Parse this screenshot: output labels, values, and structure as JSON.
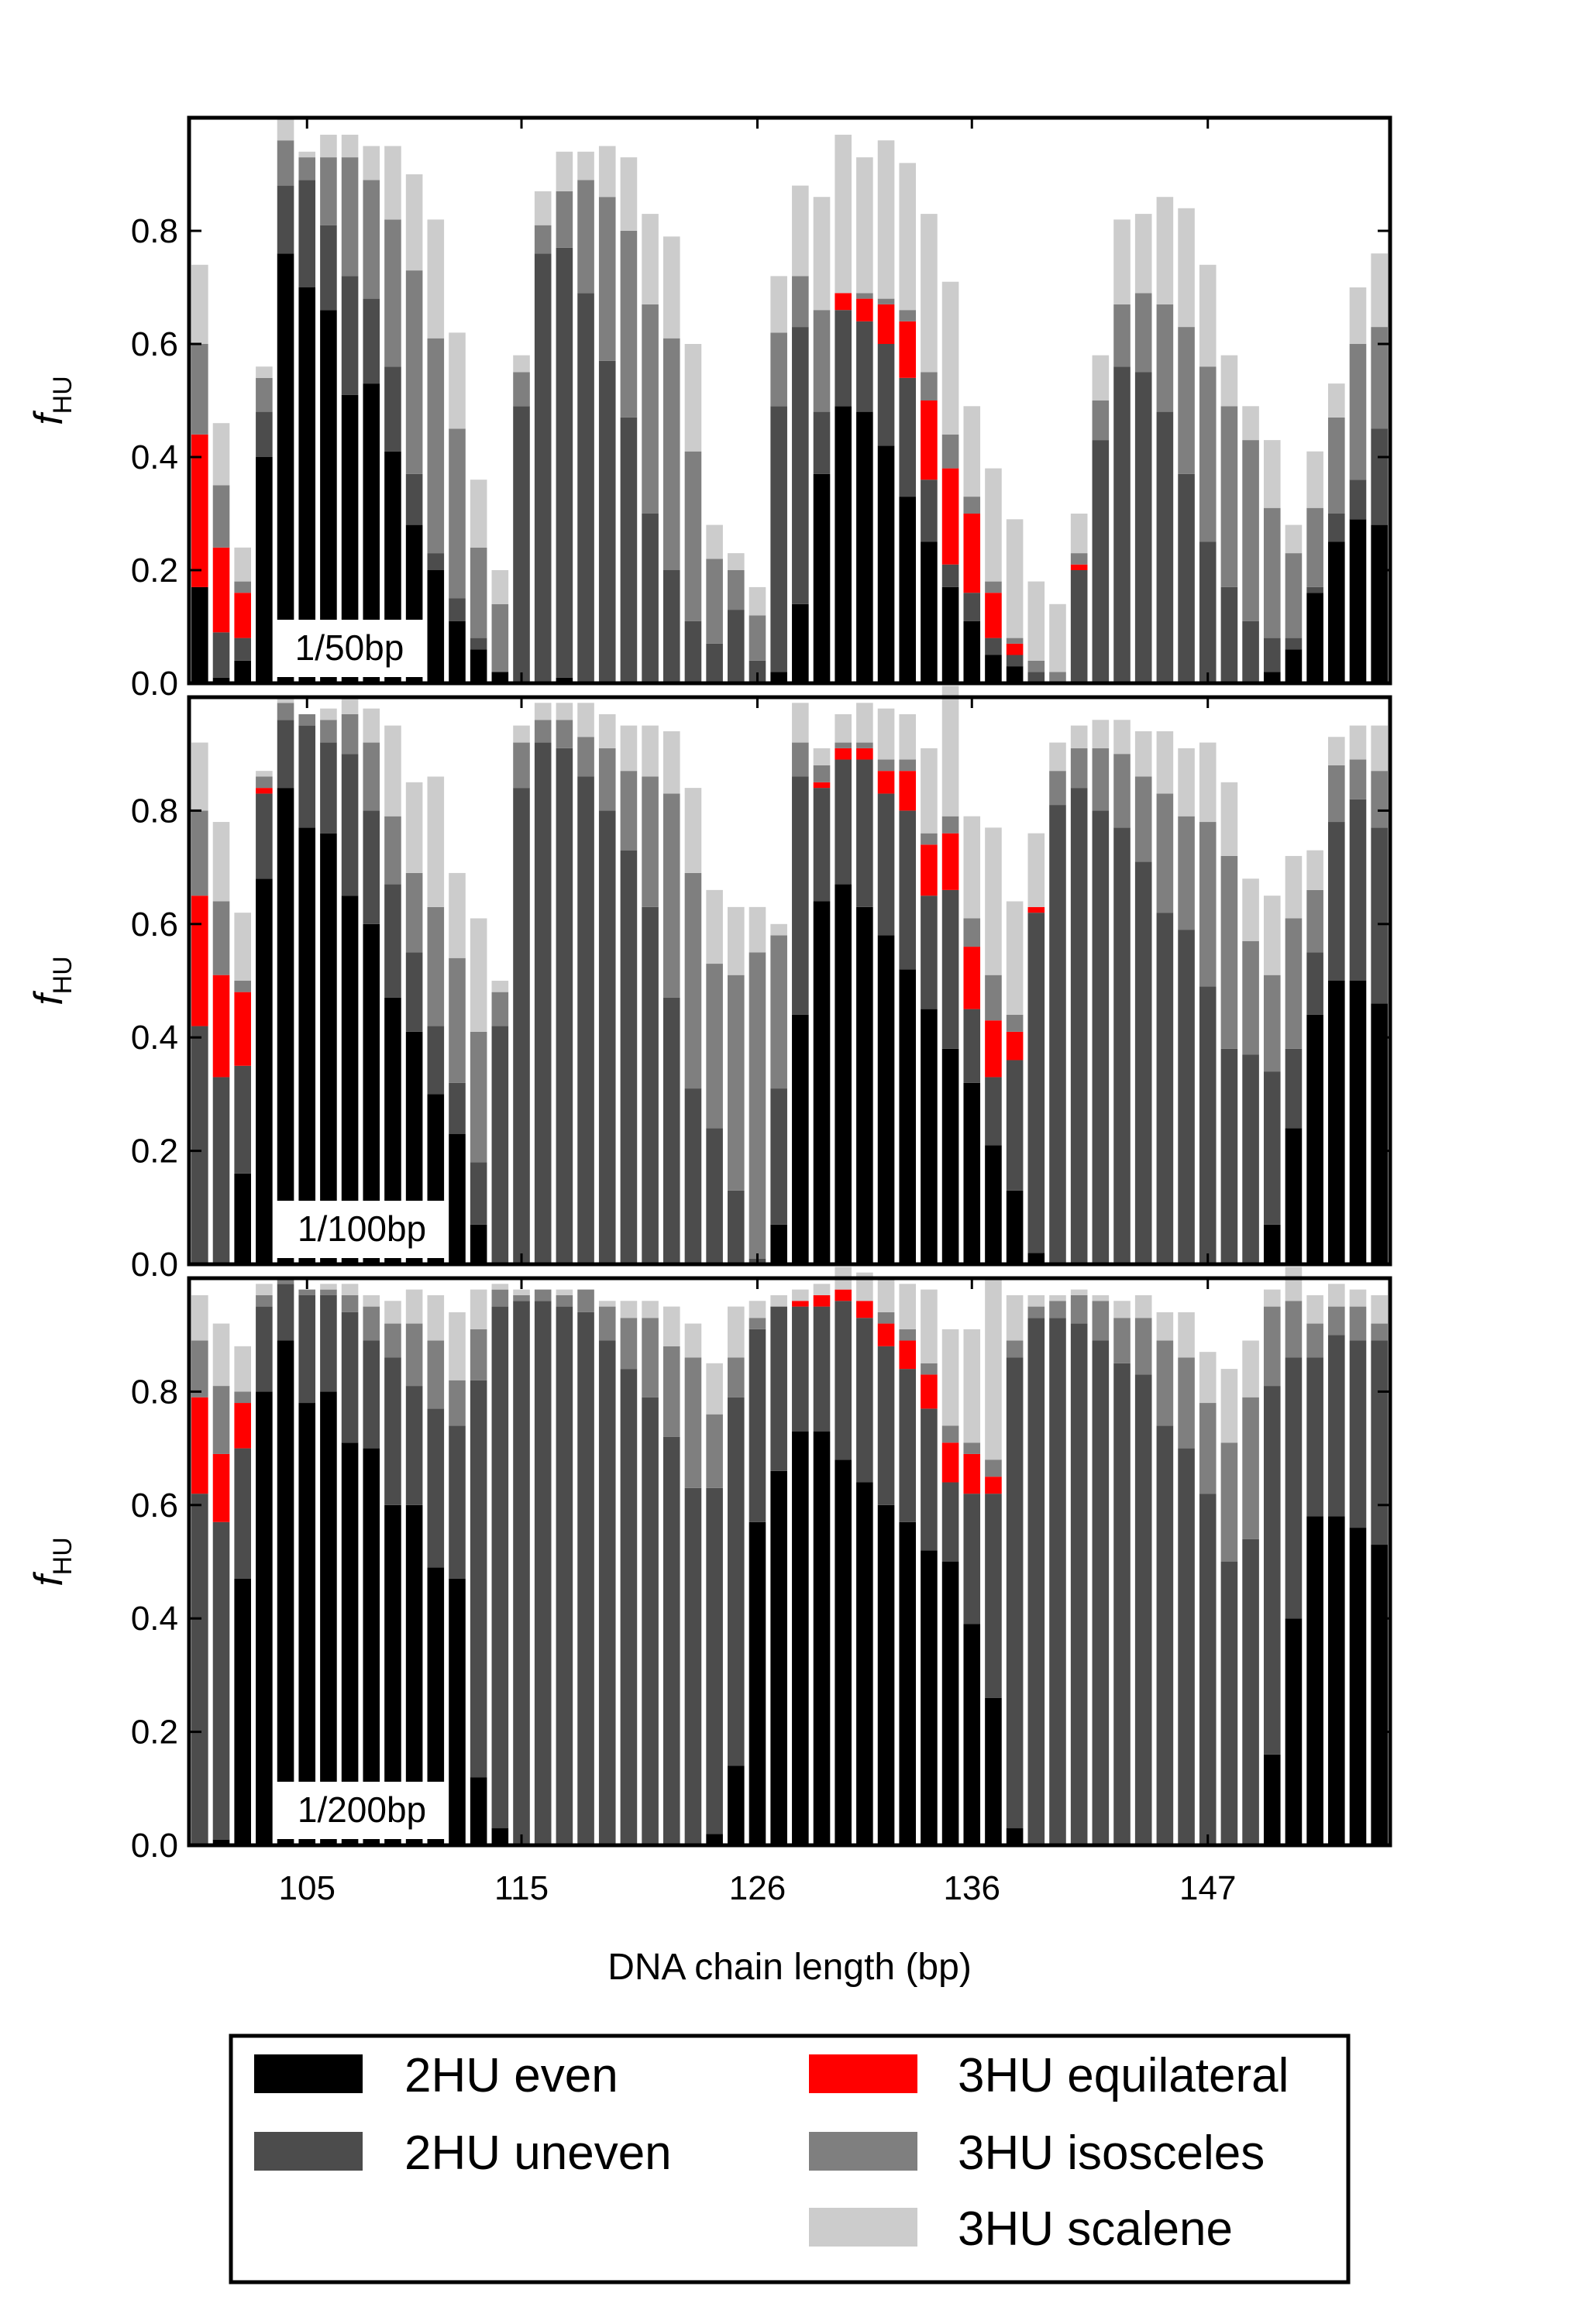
{
  "chart_data": [
    {
      "type": "bar",
      "stacked": true,
      "annotation": "1/50bp",
      "ylabel": "f_HU",
      "ylim": [
        0,
        1
      ],
      "yticks": [
        0.0,
        0.2,
        0.4,
        0.6,
        0.8
      ],
      "series": [
        {
          "name": "2HU even",
          "color": "#000000",
          "values": [
            0.17,
            0.01,
            0.04,
            0.4,
            0.76,
            0.7,
            0.66,
            0.51,
            0.53,
            0.41,
            0.28,
            0.2,
            0.11,
            0.06,
            0.02,
            0.0,
            0.0,
            0.01,
            0.0,
            0.0,
            0.0,
            0.0,
            0.0,
            0.0,
            0.0,
            0.0,
            0.0,
            0.02,
            0.14,
            0.37,
            0.49,
            0.48,
            0.42,
            0.33,
            0.25,
            0.17,
            0.11,
            0.05,
            0.03,
            0.0,
            0.0,
            0.0,
            0.0,
            0.0,
            0.0,
            0.0,
            0.0,
            0.0,
            0.0,
            0.0,
            0.02,
            0.06,
            0.16,
            0.25,
            0.29,
            0.28
          ]
        },
        {
          "name": "2HU uneven",
          "color": "#4c4c4c",
          "values": [
            0.0,
            0.08,
            0.04,
            0.08,
            0.12,
            0.19,
            0.15,
            0.21,
            0.15,
            0.15,
            0.09,
            0.03,
            0.04,
            0.02,
            0.0,
            0.49,
            0.76,
            0.76,
            0.69,
            0.57,
            0.47,
            0.3,
            0.2,
            0.11,
            0.07,
            0.13,
            0.04,
            0.47,
            0.49,
            0.11,
            0.17,
            0.16,
            0.18,
            0.21,
            0.11,
            0.04,
            0.05,
            0.03,
            0.02,
            0.02,
            0.0,
            0.2,
            0.43,
            0.56,
            0.55,
            0.48,
            0.37,
            0.25,
            0.17,
            0.11,
            0.06,
            0.02,
            0.01,
            0.05,
            0.07,
            0.17
          ]
        },
        {
          "name": "3HU equilateral",
          "color": "#ff0000",
          "values": [
            0.27,
            0.15,
            0.08,
            0.0,
            0.0,
            0.0,
            0.0,
            0.0,
            0.0,
            0.0,
            0.0,
            0.0,
            0.0,
            0.0,
            0.0,
            0.0,
            0.0,
            0.0,
            0.0,
            0.0,
            0.0,
            0.0,
            0.0,
            0.0,
            0.0,
            0.0,
            0.0,
            0.0,
            0.0,
            0.0,
            0.03,
            0.04,
            0.07,
            0.1,
            0.14,
            0.17,
            0.14,
            0.08,
            0.02,
            0.0,
            0.0,
            0.01,
            0.0,
            0.0,
            0.0,
            0.0,
            0.0,
            0.0,
            0.0,
            0.0,
            0.0,
            0.0,
            0.0,
            0.0,
            0.0,
            0.0
          ]
        },
        {
          "name": "3HU isosceles",
          "color": "#7f7f7f",
          "values": [
            0.16,
            0.11,
            0.02,
            0.06,
            0.08,
            0.04,
            0.12,
            0.21,
            0.21,
            0.26,
            0.36,
            0.38,
            0.3,
            0.16,
            0.12,
            0.06,
            0.05,
            0.1,
            0.2,
            0.29,
            0.33,
            0.37,
            0.41,
            0.3,
            0.15,
            0.07,
            0.08,
            0.13,
            0.09,
            0.18,
            0.0,
            0.01,
            0.01,
            0.02,
            0.05,
            0.06,
            0.03,
            0.02,
            0.01,
            0.02,
            0.02,
            0.02,
            0.07,
            0.11,
            0.14,
            0.19,
            0.26,
            0.31,
            0.32,
            0.32,
            0.23,
            0.15,
            0.14,
            0.17,
            0.24,
            0.18
          ]
        },
        {
          "name": "3HU scalene",
          "color": "#cccccc",
          "values": [
            0.14,
            0.11,
            0.06,
            0.02,
            0.04,
            0.01,
            0.04,
            0.04,
            0.06,
            0.13,
            0.17,
            0.21,
            0.17,
            0.12,
            0.06,
            0.03,
            0.06,
            0.07,
            0.05,
            0.09,
            0.13,
            0.16,
            0.18,
            0.19,
            0.06,
            0.03,
            0.05,
            0.1,
            0.16,
            0.2,
            0.28,
            0.24,
            0.28,
            0.26,
            0.28,
            0.27,
            0.16,
            0.2,
            0.21,
            0.14,
            0.12,
            0.07,
            0.08,
            0.15,
            0.14,
            0.19,
            0.21,
            0.18,
            0.09,
            0.06,
            0.12,
            0.05,
            0.1,
            0.06,
            0.1,
            0.13
          ]
        }
      ]
    },
    {
      "type": "bar",
      "stacked": true,
      "annotation": "1/100bp",
      "ylabel": "f_HU",
      "ylim": [
        0,
        1
      ],
      "yticks": [
        0.0,
        0.2,
        0.4,
        0.6,
        0.8
      ],
      "series": [
        {
          "name": "2HU even",
          "color": "#000000",
          "values": [
            0.0,
            0.0,
            0.16,
            0.68,
            0.84,
            0.77,
            0.76,
            0.65,
            0.6,
            0.47,
            0.41,
            0.3,
            0.23,
            0.07,
            0.0,
            0.0,
            0.0,
            0.0,
            0.0,
            0.0,
            0.0,
            0.0,
            0.0,
            0.0,
            0.0,
            0.0,
            0.0,
            0.07,
            0.44,
            0.64,
            0.67,
            0.63,
            0.58,
            0.52,
            0.45,
            0.38,
            0.32,
            0.21,
            0.13,
            0.02,
            0.0,
            0.0,
            0.0,
            0.0,
            0.0,
            0.0,
            0.0,
            0.0,
            0.0,
            0.0,
            0.07,
            0.24,
            0.44,
            0.5,
            0.5,
            0.46
          ]
        },
        {
          "name": "2HU uneven",
          "color": "#4c4c4c",
          "values": [
            0.42,
            0.33,
            0.19,
            0.15,
            0.12,
            0.18,
            0.16,
            0.25,
            0.2,
            0.2,
            0.14,
            0.12,
            0.09,
            0.11,
            0.42,
            0.84,
            0.92,
            0.91,
            0.86,
            0.8,
            0.73,
            0.63,
            0.47,
            0.31,
            0.24,
            0.13,
            0.01,
            0.24,
            0.42,
            0.2,
            0.22,
            0.26,
            0.25,
            0.28,
            0.2,
            0.28,
            0.13,
            0.12,
            0.23,
            0.6,
            0.81,
            0.84,
            0.8,
            0.77,
            0.71,
            0.62,
            0.59,
            0.49,
            0.38,
            0.37,
            0.27,
            0.14,
            0.11,
            0.28,
            0.32,
            0.31
          ]
        },
        {
          "name": "3HU equilateral",
          "color": "#ff0000",
          "values": [
            0.23,
            0.18,
            0.13,
            0.01,
            0.0,
            0.0,
            0.0,
            0.0,
            0.0,
            0.0,
            0.0,
            0.0,
            0.0,
            0.0,
            0.0,
            0.0,
            0.0,
            0.0,
            0.0,
            0.0,
            0.0,
            0.0,
            0.0,
            0.0,
            0.0,
            0.0,
            0.0,
            0.0,
            0.0,
            0.01,
            0.02,
            0.02,
            0.04,
            0.07,
            0.09,
            0.1,
            0.11,
            0.1,
            0.05,
            0.01,
            0.0,
            0.0,
            0.0,
            0.0,
            0.0,
            0.0,
            0.0,
            0.0,
            0.0,
            0.0,
            0.0,
            0.0,
            0.0,
            0.0,
            0.0,
            0.0
          ]
        },
        {
          "name": "3HU isosceles",
          "color": "#7f7f7f",
          "values": [
            0.15,
            0.13,
            0.02,
            0.02,
            0.03,
            0.02,
            0.04,
            0.07,
            0.12,
            0.12,
            0.14,
            0.21,
            0.22,
            0.23,
            0.06,
            0.08,
            0.04,
            0.05,
            0.07,
            0.11,
            0.14,
            0.23,
            0.36,
            0.38,
            0.29,
            0.38,
            0.54,
            0.27,
            0.06,
            0.03,
            0.01,
            0.01,
            0.02,
            0.02,
            0.02,
            0.03,
            0.05,
            0.08,
            0.03,
            0.0,
            0.06,
            0.07,
            0.11,
            0.13,
            0.15,
            0.21,
            0.2,
            0.29,
            0.34,
            0.2,
            0.17,
            0.23,
            0.11,
            0.1,
            0.07,
            0.1
          ]
        },
        {
          "name": "3HU scalene",
          "color": "#cccccc",
          "values": [
            0.12,
            0.14,
            0.12,
            0.01,
            0.01,
            0.0,
            0.02,
            0.03,
            0.06,
            0.16,
            0.16,
            0.23,
            0.15,
            0.2,
            0.02,
            0.03,
            0.03,
            0.03,
            0.06,
            0.06,
            0.08,
            0.09,
            0.11,
            0.15,
            0.13,
            0.12,
            0.08,
            0.02,
            0.07,
            0.03,
            0.05,
            0.07,
            0.09,
            0.08,
            0.15,
            0.23,
            0.18,
            0.26,
            0.2,
            0.13,
            0.05,
            0.04,
            0.05,
            0.06,
            0.08,
            0.11,
            0.12,
            0.14,
            0.13,
            0.11,
            0.14,
            0.11,
            0.07,
            0.05,
            0.06,
            0.08
          ]
        }
      ]
    },
    {
      "type": "bar",
      "stacked": true,
      "annotation": "1/200bp",
      "ylabel": "f_HU",
      "ylim": [
        0,
        1
      ],
      "yticks": [
        0.0,
        0.2,
        0.4,
        0.6,
        0.8
      ],
      "series": [
        {
          "name": "2HU even",
          "color": "#000000",
          "values": [
            0.0,
            0.01,
            0.47,
            0.8,
            0.89,
            0.78,
            0.8,
            0.71,
            0.7,
            0.6,
            0.6,
            0.49,
            0.47,
            0.12,
            0.03,
            0.0,
            0.0,
            0.0,
            0.0,
            0.0,
            0.0,
            0.0,
            0.0,
            0.0,
            0.02,
            0.14,
            0.57,
            0.66,
            0.73,
            0.73,
            0.68,
            0.64,
            0.6,
            0.57,
            0.52,
            0.5,
            0.39,
            0.26,
            0.03,
            0.0,
            0.0,
            0.0,
            0.0,
            0.0,
            0.0,
            0.0,
            0.0,
            0.0,
            0.0,
            0.0,
            0.16,
            0.4,
            0.58,
            0.58,
            0.56,
            0.53
          ]
        },
        {
          "name": "2HU uneven",
          "color": "#4c4c4c",
          "values": [
            0.62,
            0.56,
            0.23,
            0.15,
            0.1,
            0.19,
            0.17,
            0.23,
            0.19,
            0.26,
            0.21,
            0.28,
            0.27,
            0.7,
            0.92,
            0.96,
            0.96,
            0.95,
            0.94,
            0.89,
            0.84,
            0.79,
            0.72,
            0.63,
            0.61,
            0.65,
            0.34,
            0.29,
            0.22,
            0.22,
            0.28,
            0.29,
            0.28,
            0.27,
            0.25,
            0.14,
            0.23,
            0.36,
            0.83,
            0.93,
            0.93,
            0.92,
            0.89,
            0.85,
            0.83,
            0.74,
            0.7,
            0.62,
            0.5,
            0.54,
            0.65,
            0.46,
            0.28,
            0.32,
            0.33,
            0.36
          ]
        },
        {
          "name": "3HU equilateral",
          "color": "#ff0000",
          "values": [
            0.17,
            0.12,
            0.08,
            0.0,
            0.0,
            0.0,
            0.0,
            0.0,
            0.0,
            0.0,
            0.0,
            0.0,
            0.0,
            0.0,
            0.0,
            0.0,
            0.0,
            0.0,
            0.0,
            0.0,
            0.0,
            0.0,
            0.0,
            0.0,
            0.0,
            0.0,
            0.0,
            0.0,
            0.01,
            0.02,
            0.02,
            0.03,
            0.04,
            0.05,
            0.06,
            0.07,
            0.07,
            0.03,
            0.0,
            0.0,
            0.0,
            0.0,
            0.0,
            0.0,
            0.0,
            0.0,
            0.0,
            0.0,
            0.0,
            0.0,
            0.0,
            0.0,
            0.0,
            0.0,
            0.0,
            0.0
          ]
        },
        {
          "name": "3HU isosceles",
          "color": "#7f7f7f",
          "values": [
            0.1,
            0.12,
            0.02,
            0.02,
            0.01,
            0.01,
            0.01,
            0.03,
            0.06,
            0.06,
            0.11,
            0.12,
            0.08,
            0.09,
            0.03,
            0.01,
            0.02,
            0.02,
            0.04,
            0.06,
            0.09,
            0.14,
            0.16,
            0.23,
            0.13,
            0.07,
            0.02,
            0.0,
            0.0,
            0.0,
            0.0,
            0.0,
            0.02,
            0.02,
            0.02,
            0.03,
            0.02,
            0.03,
            0.03,
            0.02,
            0.03,
            0.05,
            0.07,
            0.08,
            0.1,
            0.15,
            0.16,
            0.16,
            0.21,
            0.25,
            0.14,
            0.1,
            0.06,
            0.05,
            0.06,
            0.03
          ]
        },
        {
          "name": "3HU scalene",
          "color": "#cccccc",
          "values": [
            0.08,
            0.11,
            0.08,
            0.02,
            0.0,
            0.0,
            0.01,
            0.02,
            0.02,
            0.04,
            0.06,
            0.08,
            0.12,
            0.07,
            0.01,
            0.01,
            0.0,
            0.01,
            0.0,
            0.01,
            0.03,
            0.03,
            0.07,
            0.06,
            0.09,
            0.09,
            0.03,
            0.02,
            0.02,
            0.02,
            0.04,
            0.05,
            0.06,
            0.08,
            0.13,
            0.17,
            0.2,
            0.32,
            0.08,
            0.02,
            0.01,
            0.01,
            0.01,
            0.03,
            0.04,
            0.05,
            0.08,
            0.09,
            0.13,
            0.1,
            0.03,
            0.06,
            0.05,
            0.04,
            0.03,
            0.05
          ]
        }
      ]
    }
  ],
  "x_axis": {
    "label": "DNA chain length (bp)",
    "first_length": 100,
    "bar_count": 56,
    "tick_labels": [
      "105",
      "115",
      "126",
      "136",
      "147"
    ],
    "tick_lengths": [
      105,
      115,
      126,
      136,
      147
    ]
  },
  "legend": {
    "placement": "bottom",
    "items": [
      {
        "label": "2HU even",
        "color": "#000000"
      },
      {
        "label": "2HU uneven",
        "color": "#4c4c4c"
      },
      {
        "label": "3HU equilateral",
        "color": "#ff0000"
      },
      {
        "label": "3HU isosceles",
        "color": "#7f7f7f"
      },
      {
        "label": "3HU scalene",
        "color": "#cccccc"
      }
    ]
  }
}
